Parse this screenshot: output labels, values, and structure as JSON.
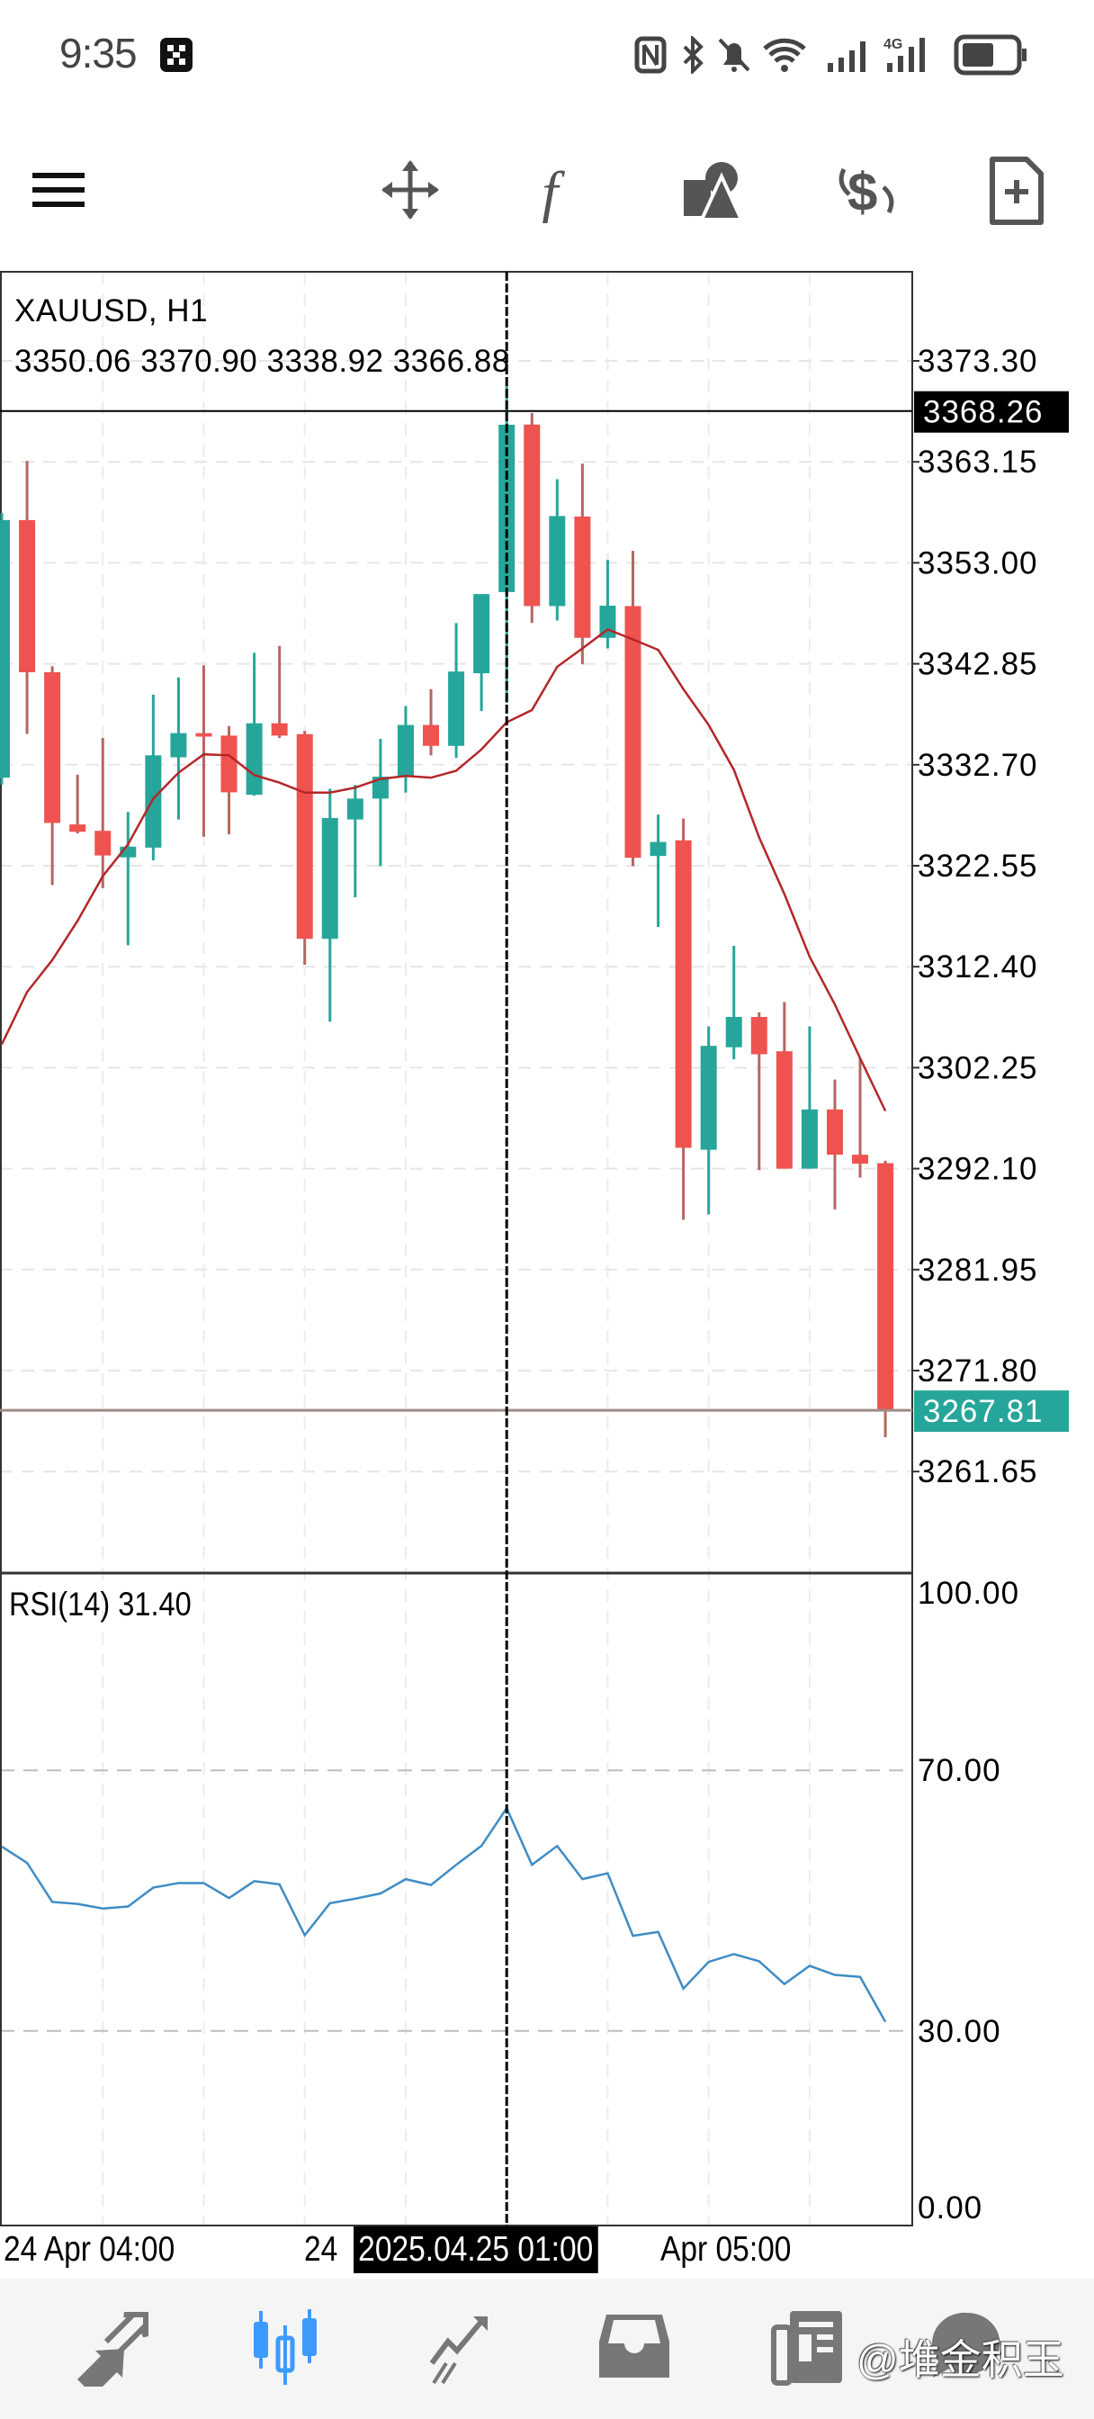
{
  "status_bar": {
    "time": "9:35",
    "icons": [
      "app-notification-icon",
      "nfc-icon",
      "bluetooth-icon",
      "mute-bell-icon",
      "wifi-icon",
      "signal-icon",
      "4g-signal-icon",
      "battery-icon"
    ]
  },
  "toolbar": {
    "icons": [
      "menu-icon",
      "crosshair-move-icon",
      "indicators-f-icon",
      "objects-shapes-icon",
      "symbol-switch-dollar-icon",
      "templates-doc-plus-icon"
    ]
  },
  "chart_header": {
    "symbol_timeframe": "XAUUSD, H1",
    "ohlc": "3350.06 3370.90 3338.92 3366.88"
  },
  "rsi_header": {
    "label": "RSI(14) 31.40"
  },
  "time_axis": {
    "label_left": "24 Apr 04:00",
    "label_mid": "24",
    "crosshair_time": "2025.04.25 01:00",
    "label_right": "Apr 05:00"
  },
  "bottom_nav": {
    "items": [
      "quotes",
      "chart",
      "trade",
      "history",
      "news",
      "messages"
    ],
    "active": "chart"
  },
  "watermark": "@堆金积玉",
  "colors": {
    "bull": "#26a69a",
    "bear": "#ef5350",
    "ma": "#b3272a",
    "rsi": "#3f8cc4",
    "active_nav": "#3d9bff"
  },
  "chart_data": {
    "type": "candlestick",
    "title": "XAUUSD, H1",
    "ylim": [
      3256.5,
      3378.4
    ],
    "price_ticks": [
      "3373.30",
      "3363.15",
      "3353.00",
      "3342.85",
      "3332.70",
      "3322.55",
      "3312.40",
      "3302.25",
      "3292.10",
      "3281.95",
      "3271.80",
      "3261.65"
    ],
    "crosshair_index": 20,
    "crosshair_price": "3368.26",
    "last_price": "3267.81",
    "candles_ohlc": [
      [
        3331.4,
        3358.0,
        3330.7,
        3357.3
      ],
      [
        3357.3,
        3363.25,
        3335.8,
        3342.0
      ],
      [
        3342.0,
        3342.6,
        3320.6,
        3326.85
      ],
      [
        3326.7,
        3331.7,
        3325.8,
        3325.96
      ],
      [
        3326.06,
        3335.4,
        3320.3,
        3323.58
      ],
      [
        3323.39,
        3327.95,
        3314.56,
        3324.47
      ],
      [
        3324.37,
        3339.75,
        3323.09,
        3333.65
      ],
      [
        3333.45,
        3341.48,
        3327.2,
        3335.88
      ],
      [
        3335.88,
        3342.7,
        3325.47,
        3335.53
      ],
      [
        3335.63,
        3336.6,
        3325.7,
        3329.93
      ],
      [
        3329.68,
        3343.96,
        3329.6,
        3336.87
      ],
      [
        3336.87,
        3344.65,
        3335.38,
        3335.63
      ],
      [
        3335.78,
        3336.1,
        3312.6,
        3315.2
      ],
      [
        3315.2,
        3330.28,
        3306.88,
        3327.35
      ],
      [
        3327.2,
        3330.67,
        3319.37,
        3329.3
      ],
      [
        3329.3,
        3335.3,
        3322.5,
        3331.5
      ],
      [
        3331.5,
        3338.6,
        3329.9,
        3336.7
      ],
      [
        3336.7,
        3340.3,
        3333.65,
        3334.6
      ],
      [
        3334.6,
        3346.94,
        3333.4,
        3342.07
      ],
      [
        3341.9,
        3349.86,
        3338.1,
        3349.86
      ],
      [
        3350.06,
        3370.9,
        3338.92,
        3366.88
      ],
      [
        3366.9,
        3368.06,
        3346.95,
        3348.65
      ],
      [
        3348.65,
        3361.4,
        3347.2,
        3357.7
      ],
      [
        3357.65,
        3362.97,
        3342.8,
        3345.46
      ],
      [
        3345.46,
        3353.3,
        3344.4,
        3348.69
      ],
      [
        3348.65,
        3354.2,
        3322.5,
        3323.35
      ],
      [
        3323.53,
        3327.7,
        3316.4,
        3324.94
      ],
      [
        3325.1,
        3327.3,
        3286.96,
        3294.2
      ],
      [
        3294.0,
        3306.4,
        3287.5,
        3304.44
      ],
      [
        3304.3,
        3314.5,
        3303.1,
        3307.35
      ],
      [
        3307.35,
        3307.8,
        3291.95,
        3303.6
      ],
      [
        3303.9,
        3308.85,
        3292.1,
        3292.1
      ],
      [
        3292.1,
        3306.4,
        3292.1,
        3298.05
      ],
      [
        3298.05,
        3301.05,
        3288.0,
        3293.5
      ],
      [
        3293.5,
        3303.2,
        3291.2,
        3292.6
      ],
      [
        3292.65,
        3292.9,
        3265.1,
        3267.81
      ]
    ],
    "moving_average": [
      3304.6,
      3309.85,
      3313.07,
      3317.0,
      3321.5,
      3324.7,
      3329.3,
      3331.9,
      3333.75,
      3333.65,
      3331.67,
      3330.9,
      3329.9,
      3329.9,
      3330.4,
      3331.27,
      3331.57,
      3331.4,
      3332.1,
      3334.24,
      3336.97,
      3338.2,
      3342.55,
      3344.4,
      3346.3,
      3345.3,
      3344.25,
      3340.3,
      3336.7,
      3332.2,
      3325.4,
      3319.7,
      3313.4,
      3308.6,
      3303.2,
      3297.9
    ],
    "rsi": {
      "period": 14,
      "ylim": [
        0,
        100
      ],
      "ticks": [
        "100.00",
        "70.00",
        "30.00",
        "0.00"
      ],
      "levels": [
        70,
        30
      ],
      "values": [
        58.3,
        55.8,
        49.8,
        49.5,
        48.8,
        49.1,
        52.0,
        52.7,
        52.7,
        50.4,
        53.0,
        52.5,
        44.7,
        49.6,
        50.3,
        51.1,
        53.3,
        52.4,
        55.5,
        58.4,
        64.2,
        55.5,
        58.4,
        53.3,
        54.2,
        44.6,
        45.2,
        36.5,
        40.6,
        41.8,
        40.7,
        37.2,
        40.0,
        38.6,
        38.3,
        31.4
      ]
    }
  }
}
